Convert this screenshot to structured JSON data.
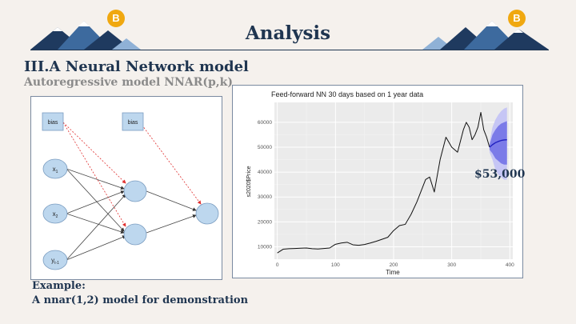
{
  "slide": {
    "title": "Analysis",
    "section_title": "III.A Neural Network model",
    "subtitle": "Autoregressive model NNAR(p,k)",
    "price_callout": "$53,000",
    "example_label": "Example:",
    "example_desc": "A nnar(1,2) model for demonstration",
    "coin_symbol": "B"
  },
  "diagram": {
    "bias_label": "bias",
    "input_1": "x",
    "input_1_sub": "1",
    "input_2": "x",
    "input_2_sub": "2",
    "input_3": "y",
    "input_3_sub": "t-1"
  },
  "colors": {
    "navy": "#1f3550",
    "mountain_dark": "#1f3a5f",
    "mountain_mid": "#3d6a9e",
    "mountain_light": "#8fb1d6",
    "coin": "#f0a810",
    "node_fill": "#bdd7ee",
    "band_outer": "#c6c6f5",
    "band_inner": "#7b7be8",
    "forecast_line": "#2020c0"
  },
  "chart_data": {
    "type": "line",
    "title": "Feed-forward NN 30 days based on 1 year data",
    "xlabel": "Time",
    "ylabel": "s2020$Price",
    "xlim": [
      -5,
      405
    ],
    "ylim": [
      5000,
      68000
    ],
    "x_ticks": [
      0,
      100,
      200,
      300,
      400
    ],
    "y_ticks": [
      10000,
      20000,
      30000,
      40000,
      50000,
      60000
    ],
    "y_tick_labels": [
      "10000",
      "20000",
      "30000",
      "40000",
      "50000",
      "60000"
    ],
    "grid": true,
    "series": [
      {
        "role": "history",
        "x": [
          0,
          10,
          20,
          30,
          40,
          50,
          60,
          70,
          80,
          90,
          100,
          110,
          120,
          130,
          140,
          150,
          160,
          170,
          180,
          190,
          200,
          210,
          220,
          230,
          240,
          250,
          255,
          262,
          270,
          280,
          290,
          300,
          310,
          320,
          325,
          330,
          335,
          340,
          345,
          350,
          355,
          360,
          365
        ],
        "y": [
          7500,
          9000,
          9200,
          9300,
          9400,
          9500,
          9200,
          9100,
          9300,
          9500,
          11000,
          11500,
          11800,
          10800,
          10600,
          10900,
          11500,
          12200,
          13000,
          13800,
          16500,
          18500,
          19000,
          23000,
          28000,
          34000,
          37000,
          38000,
          32000,
          45000,
          54000,
          50000,
          48000,
          57000,
          60000,
          58000,
          53000,
          55000,
          58000,
          64000,
          57000,
          54000,
          50000
        ]
      },
      {
        "role": "forecast",
        "x": [
          365,
          370,
          375,
          380,
          385,
          390,
          395
        ],
        "y": [
          50000,
          51000,
          51800,
          52300,
          52700,
          52900,
          53000
        ]
      }
    ],
    "band_outer": {
      "x": [
        365,
        370,
        375,
        380,
        385,
        390,
        395
      ],
      "upper": [
        52000,
        58000,
        61000,
        63000,
        64500,
        65500,
        66000
      ],
      "lower": [
        48000,
        45000,
        41000,
        39000,
        38000,
        37000,
        37000
      ]
    },
    "band_inner": {
      "x": [
        365,
        370,
        375,
        380,
        385,
        390,
        395
      ],
      "upper": [
        51000,
        55000,
        57000,
        58500,
        59500,
        60000,
        60500
      ],
      "lower": [
        49000,
        47500,
        45500,
        44500,
        43500,
        43000,
        43000
      ]
    }
  }
}
